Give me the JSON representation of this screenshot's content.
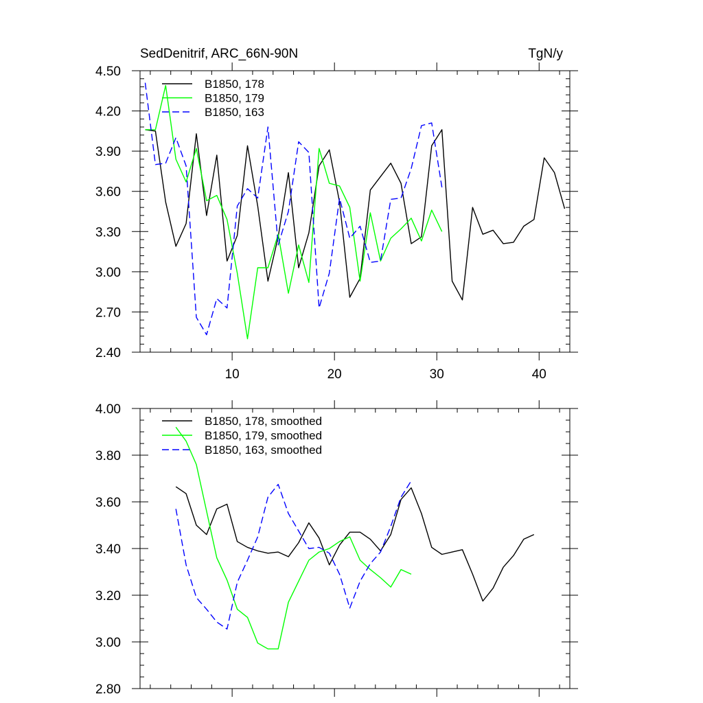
{
  "chart_data": [
    {
      "type": "line",
      "title": "SedDenitrif, ARC_66N-90N",
      "units": "TgN/y",
      "xlabel": "",
      "ylabel": "",
      "xlim": [
        1,
        43
      ],
      "ylim": [
        2.4,
        4.5
      ],
      "xticks": [
        10,
        20,
        30,
        40
      ],
      "xtick_labels": [
        "10",
        "20",
        "30",
        "40"
      ],
      "yticks": [
        2.4,
        2.7,
        3.0,
        3.3,
        3.6,
        3.9,
        4.2,
        4.5
      ],
      "ytick_labels": [
        "2.40",
        "2.70",
        "3.00",
        "3.30",
        "3.60",
        "3.90",
        "4.20",
        "4.50"
      ],
      "legend_position": "top-left",
      "series": [
        {
          "name": "B1850, 178",
          "color": "#000000",
          "style": "solid",
          "x": [
            1.5,
            2.5,
            3.5,
            4.5,
            5.5,
            6.5,
            7.5,
            8.5,
            9.5,
            10.5,
            11.5,
            12.5,
            13.5,
            14.5,
            15.5,
            16.5,
            17.5,
            18.5,
            19.5,
            20.5,
            21.5,
            22.5,
            23.5,
            24.5,
            25.5,
            26.5,
            27.5,
            28.5,
            29.5,
            30.5,
            31.5,
            32.5,
            33.5,
            34.5,
            35.5,
            36.5,
            37.5,
            38.5,
            39.5,
            40.5,
            41.5,
            42.5
          ],
          "values": [
            4.06,
            4.05,
            3.52,
            3.19,
            3.36,
            4.03,
            3.42,
            3.87,
            3.08,
            3.27,
            3.94,
            3.49,
            2.93,
            3.26,
            3.74,
            3.03,
            3.29,
            3.79,
            3.91,
            3.52,
            2.81,
            2.95,
            3.61,
            3.71,
            3.81,
            3.66,
            3.21,
            3.26,
            3.94,
            4.06,
            2.93,
            2.79,
            3.48,
            3.28,
            3.31,
            3.21,
            3.22,
            3.34,
            3.39,
            3.85,
            3.74,
            3.47
          ]
        },
        {
          "name": "B1850, 179",
          "color": "#00ff00",
          "style": "solid",
          "x": [
            1.5,
            2.5,
            3.5,
            4.5,
            5.5,
            6.5,
            7.5,
            8.5,
            9.5,
            10.5,
            11.5,
            12.5,
            13.5,
            14.5,
            15.5,
            16.5,
            17.5,
            18.5,
            19.5,
            20.5,
            21.5,
            22.5,
            23.5,
            24.5,
            25.5,
            26.5,
            27.5,
            28.5,
            29.5,
            30.5
          ],
          "values": [
            4.06,
            4.06,
            4.39,
            3.84,
            3.67,
            3.92,
            3.53,
            3.57,
            3.39,
            2.99,
            2.5,
            3.03,
            3.03,
            3.28,
            2.84,
            3.2,
            2.92,
            3.92,
            3.66,
            3.64,
            3.48,
            2.93,
            3.44,
            3.08,
            3.25,
            3.32,
            3.4,
            3.23,
            3.46,
            3.3
          ]
        },
        {
          "name": "B1850, 163",
          "color": "#0000ff",
          "style": "dashed",
          "x": [
            1.5,
            2.5,
            3.5,
            4.5,
            5.5,
            6.5,
            7.5,
            8.5,
            9.5,
            10.5,
            11.5,
            12.5,
            13.5,
            14.5,
            15.5,
            16.5,
            17.5,
            18.5,
            19.5,
            20.5,
            21.5,
            22.5,
            23.5,
            24.5,
            25.5,
            26.5,
            27.5,
            28.5,
            29.5,
            30.5
          ],
          "values": [
            4.41,
            3.8,
            3.81,
            4.0,
            3.79,
            2.66,
            2.53,
            2.8,
            2.73,
            3.49,
            3.62,
            3.55,
            4.08,
            3.2,
            3.45,
            3.97,
            3.89,
            2.73,
            2.99,
            3.55,
            3.25,
            3.34,
            3.07,
            3.08,
            3.54,
            3.55,
            3.77,
            4.09,
            4.11,
            3.63
          ]
        }
      ]
    },
    {
      "type": "line",
      "title": "",
      "xlabel": "",
      "ylabel": "",
      "xlim": [
        1,
        43
      ],
      "ylim": [
        2.8,
        4.0
      ],
      "xticks": [
        10,
        20,
        30,
        40
      ],
      "xtick_labels": [],
      "yticks": [
        2.8,
        3.0,
        3.2,
        3.4,
        3.6,
        3.8,
        4.0
      ],
      "ytick_labels": [
        "2.80",
        "3.00",
        "3.20",
        "3.40",
        "3.60",
        "3.80",
        "4.00"
      ],
      "legend_position": "top-left",
      "series": [
        {
          "name": "B1850, 178, smoothed",
          "color": "#000000",
          "style": "solid",
          "x": [
            4.5,
            5.5,
            6.5,
            7.5,
            8.5,
            9.5,
            10.5,
            11.5,
            12.5,
            13.5,
            14.5,
            15.5,
            16.5,
            17.5,
            18.5,
            19.5,
            20.5,
            21.5,
            22.5,
            23.5,
            24.5,
            25.5,
            26.5,
            27.5,
            28.5,
            29.5,
            30.5,
            31.5,
            32.5,
            33.5,
            34.5,
            35.5,
            36.5,
            37.5,
            38.5,
            39.5
          ],
          "values": [
            3.665,
            3.635,
            3.5,
            3.46,
            3.57,
            3.59,
            3.43,
            3.405,
            3.39,
            3.38,
            3.385,
            3.365,
            3.425,
            3.51,
            3.445,
            3.33,
            3.415,
            3.47,
            3.47,
            3.44,
            3.39,
            3.46,
            3.61,
            3.66,
            3.55,
            3.405,
            3.375,
            3.385,
            3.395,
            3.29,
            3.175,
            3.23,
            3.32,
            3.37,
            3.44,
            3.46
          ]
        },
        {
          "name": "B1850, 179, smoothed",
          "color": "#00ff00",
          "style": "solid",
          "x": [
            4.5,
            5.5,
            6.5,
            7.5,
            8.5,
            9.5,
            10.5,
            11.5,
            12.5,
            13.5,
            14.5,
            15.5,
            16.5,
            17.5,
            18.5,
            19.5,
            20.5,
            21.5,
            22.5,
            23.5,
            24.5,
            25.5,
            26.5,
            27.5
          ],
          "values": [
            3.92,
            3.86,
            3.76,
            3.56,
            3.36,
            3.265,
            3.14,
            3.105,
            2.995,
            2.97,
            2.97,
            3.17,
            3.26,
            3.35,
            3.385,
            3.4,
            3.43,
            3.45,
            3.35,
            3.31,
            3.275,
            3.235,
            3.31,
            3.29
          ]
        },
        {
          "name": "B1850, 163, smoothed",
          "color": "#0000ff",
          "style": "dashed",
          "x": [
            4.5,
            5.5,
            6.5,
            7.5,
            8.5,
            9.5,
            10.5,
            11.5,
            12.5,
            13.5,
            14.5,
            15.5,
            16.5,
            17.5,
            18.5,
            19.5,
            20.5,
            21.5,
            22.5,
            23.5,
            24.5,
            25.5,
            26.5,
            27.5
          ],
          "values": [
            3.57,
            3.33,
            3.19,
            3.14,
            3.085,
            3.055,
            3.255,
            3.35,
            3.45,
            3.62,
            3.675,
            3.55,
            3.475,
            3.4,
            3.405,
            3.38,
            3.29,
            3.145,
            3.26,
            3.335,
            3.385,
            3.495,
            3.62,
            3.69
          ]
        }
      ]
    }
  ]
}
